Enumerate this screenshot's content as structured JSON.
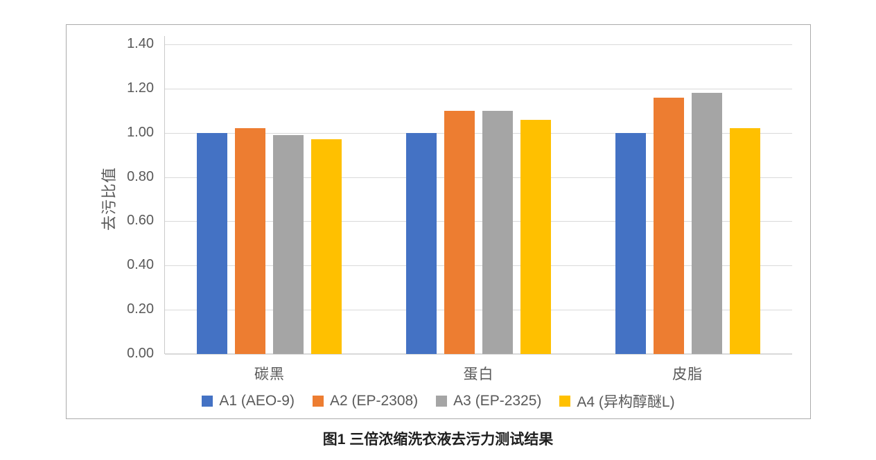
{
  "figure": {
    "caption": "图1 三倍浓缩洗衣液去污力测试结果"
  },
  "chart_data": {
    "type": "bar",
    "title": "",
    "xlabel": "",
    "ylabel": "去污比值",
    "categories": [
      "碳黑",
      "蛋白",
      "皮脂"
    ],
    "series": [
      {
        "name": "A1 (AEO-9)",
        "color": "#4472C4",
        "values": [
          1.0,
          1.0,
          1.0
        ]
      },
      {
        "name": "A2 (EP-2308)",
        "color": "#ED7D31",
        "values": [
          1.02,
          1.1,
          1.16
        ]
      },
      {
        "name": "A3 (EP-2325)",
        "color": "#A5A5A5",
        "values": [
          0.99,
          1.1,
          1.18
        ]
      },
      {
        "name": "A4 (异构醇醚L)",
        "color": "#FFC000",
        "values": [
          0.97,
          1.06,
          1.02
        ]
      }
    ],
    "ylim": [
      0,
      1.4
    ],
    "ytick_step": 0.2,
    "ytick_decimals": 2,
    "grid": true,
    "legend_position": "bottom"
  }
}
